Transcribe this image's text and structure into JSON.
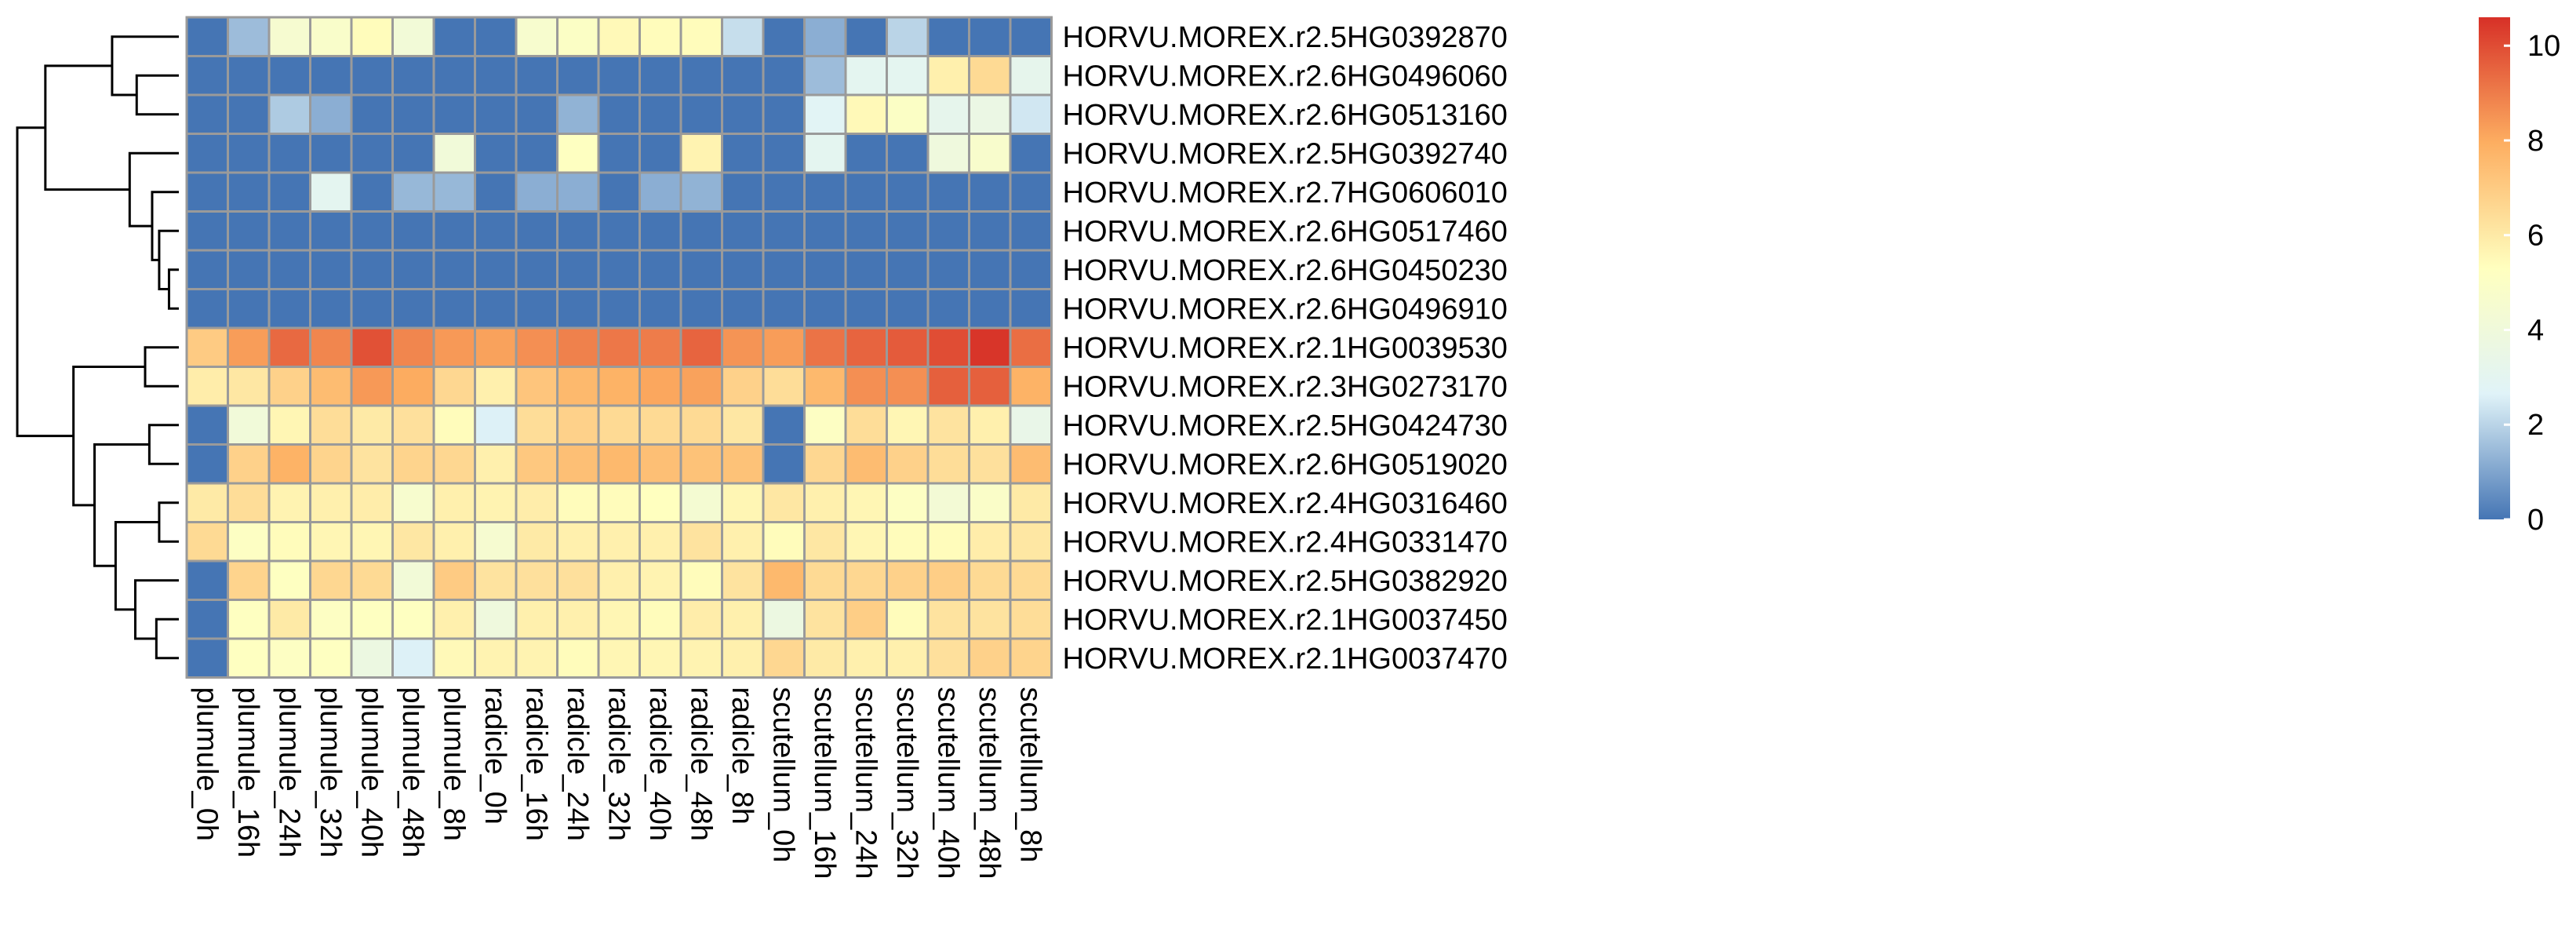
{
  "chart_data": {
    "type": "heatmap",
    "title": "",
    "xlabel": "",
    "ylabel": "",
    "columns": [
      "plumule_0h",
      "plumule_16h",
      "plumule_24h",
      "plumule_32h",
      "plumule_40h",
      "plumule_48h",
      "plumule_8h",
      "radicle_0h",
      "radicle_16h",
      "radicle_24h",
      "radicle_32h",
      "radicle_40h",
      "radicle_48h",
      "radicle_8h",
      "scutellum_0h",
      "scutellum_16h",
      "scutellum_24h",
      "scutellum_32h",
      "scutellum_40h",
      "scutellum_48h",
      "scutellum_8h"
    ],
    "rows": [
      "HORVU.MOREX.r2.5HG0392870",
      "HORVU.MOREX.r2.6HG0496060",
      "HORVU.MOREX.r2.6HG0513160",
      "HORVU.MOREX.r2.5HG0392740",
      "HORVU.MOREX.r2.7HG0606010",
      "HORVU.MOREX.r2.6HG0517460",
      "HORVU.MOREX.r2.6HG0450230",
      "HORVU.MOREX.r2.6HG0496910",
      "HORVU.MOREX.r2.1HG0039530",
      "HORVU.MOREX.r2.3HG0273170",
      "HORVU.MOREX.r2.5HG0424730",
      "HORVU.MOREX.r2.6HG0519020",
      "HORVU.MOREX.r2.4HG0316460",
      "HORVU.MOREX.r2.4HG0331470",
      "HORVU.MOREX.r2.5HG0382920",
      "HORVU.MOREX.r2.1HG0037450",
      "HORVU.MOREX.r2.1HG0037470"
    ],
    "values": [
      [
        0.0,
        1.5,
        4.5,
        4.8,
        5.4,
        4.2,
        0.0,
        0.0,
        4.6,
        5.0,
        5.5,
        5.4,
        5.4,
        2.2,
        0.0,
        1.2,
        0.0,
        2.0,
        0.0,
        0.0,
        0.0
      ],
      [
        0.0,
        0.0,
        0.0,
        0.0,
        0.0,
        0.0,
        0.0,
        0.0,
        0.0,
        0.0,
        0.0,
        0.0,
        0.0,
        0.0,
        0.0,
        1.5,
        3.0,
        3.0,
        5.8,
        6.5,
        3.2
      ],
      [
        0.0,
        0.0,
        1.8,
        1.2,
        0.0,
        0.0,
        0.0,
        0.0,
        0.0,
        1.3,
        0.0,
        0.0,
        0.0,
        0.0,
        0.0,
        2.8,
        5.5,
        5.0,
        3.2,
        3.6,
        2.4
      ],
      [
        0.0,
        0.0,
        0.0,
        0.0,
        0.0,
        0.0,
        4.1,
        0.0,
        0.0,
        5.2,
        0.0,
        0.0,
        5.7,
        0.0,
        0.0,
        3.0,
        0.0,
        0.0,
        3.9,
        4.7,
        0.0
      ],
      [
        0.0,
        0.0,
        0.0,
        3.0,
        0.0,
        1.4,
        1.4,
        0.0,
        1.2,
        1.2,
        0.0,
        1.2,
        1.3,
        0.0,
        0.0,
        0.0,
        0.0,
        0.0,
        0.0,
        0.0,
        0.0
      ],
      [
        0.0,
        0.0,
        0.0,
        0.0,
        0.0,
        0.0,
        0.0,
        0.0,
        0.0,
        0.0,
        0.0,
        0.0,
        0.0,
        0.0,
        0.0,
        0.0,
        0.0,
        0.0,
        0.0,
        0.0,
        0.0
      ],
      [
        0.0,
        0.0,
        0.0,
        0.0,
        0.0,
        0.0,
        0.0,
        0.0,
        0.0,
        0.0,
        0.0,
        0.0,
        0.0,
        0.0,
        0.0,
        0.0,
        0.0,
        0.0,
        0.0,
        0.0,
        0.0
      ],
      [
        0.0,
        0.0,
        0.0,
        0.0,
        0.0,
        0.0,
        0.0,
        0.0,
        0.0,
        0.0,
        0.0,
        0.0,
        0.0,
        0.0,
        0.0,
        0.0,
        0.0,
        0.0,
        0.0,
        0.0,
        0.0
      ],
      [
        7.0,
        8.3,
        9.4,
        8.8,
        9.9,
        8.8,
        8.4,
        8.2,
        8.6,
        8.9,
        9.1,
        9.0,
        9.5,
        8.5,
        8.3,
        9.2,
        9.5,
        9.7,
        10.0,
        10.5,
        9.3
      ],
      [
        5.9,
        6.1,
        6.8,
        7.5,
        8.4,
        8.0,
        6.6,
        5.8,
        7.2,
        7.6,
        7.8,
        8.1,
        8.2,
        6.8,
        6.4,
        7.6,
        8.6,
        8.6,
        9.6,
        9.6,
        7.8
      ],
      [
        0.0,
        4.1,
        5.6,
        6.4,
        6.0,
        6.3,
        5.4,
        2.6,
        6.4,
        6.8,
        6.5,
        6.5,
        6.5,
        6.1,
        0.0,
        5.1,
        6.4,
        5.6,
        6.2,
        5.8,
        3.4
      ],
      [
        0.0,
        6.8,
        7.8,
        6.7,
        6.2,
        6.7,
        6.6,
        5.8,
        7.1,
        7.4,
        7.6,
        7.4,
        7.3,
        7.3,
        0.0,
        6.6,
        7.5,
        6.8,
        6.4,
        6.3,
        7.5
      ],
      [
        6.0,
        6.4,
        5.7,
        5.8,
        5.9,
        4.6,
        5.8,
        5.7,
        5.9,
        5.4,
        5.4,
        5.3,
        4.4,
        5.6,
        6.1,
        5.8,
        5.6,
        5.1,
        4.3,
        4.9,
        6.0
      ],
      [
        6.5,
        5.1,
        5.4,
        5.6,
        5.6,
        6.1,
        5.8,
        4.5,
        6.0,
        5.8,
        5.8,
        5.8,
        6.2,
        5.8,
        5.4,
        6.1,
        5.6,
        5.4,
        5.4,
        5.9,
        6.1
      ],
      [
        0.0,
        6.7,
        5.2,
        6.6,
        6.5,
        4.2,
        7.0,
        6.2,
        6.3,
        6.3,
        5.8,
        5.7,
        5.4,
        6.2,
        7.6,
        6.5,
        6.6,
        6.8,
        6.9,
        6.5,
        6.5
      ],
      [
        0.0,
        5.2,
        6.0,
        5.1,
        5.2,
        5.2,
        5.8,
        3.9,
        5.8,
        5.8,
        5.6,
        5.4,
        5.9,
        5.8,
        3.7,
        6.2,
        6.9,
        5.4,
        6.2,
        6.2,
        6.4
      ],
      [
        0.0,
        5.2,
        5.1,
        5.2,
        3.7,
        2.6,
        5.5,
        5.7,
        5.7,
        5.4,
        5.6,
        5.6,
        5.7,
        5.8,
        6.6,
        6.0,
        5.8,
        5.8,
        6.3,
        6.8,
        6.7
      ]
    ],
    "color_range": [
      0,
      10.6
    ],
    "colors": [
      "#4575b4",
      "#e0f3f8",
      "#ffffbf",
      "#fdae61",
      "#d73027"
    ],
    "legend": {
      "ticks": [
        0,
        2,
        4,
        6,
        8,
        10
      ],
      "placement": "right"
    },
    "row_dendrogram": true,
    "column_dendrogram": false
  }
}
